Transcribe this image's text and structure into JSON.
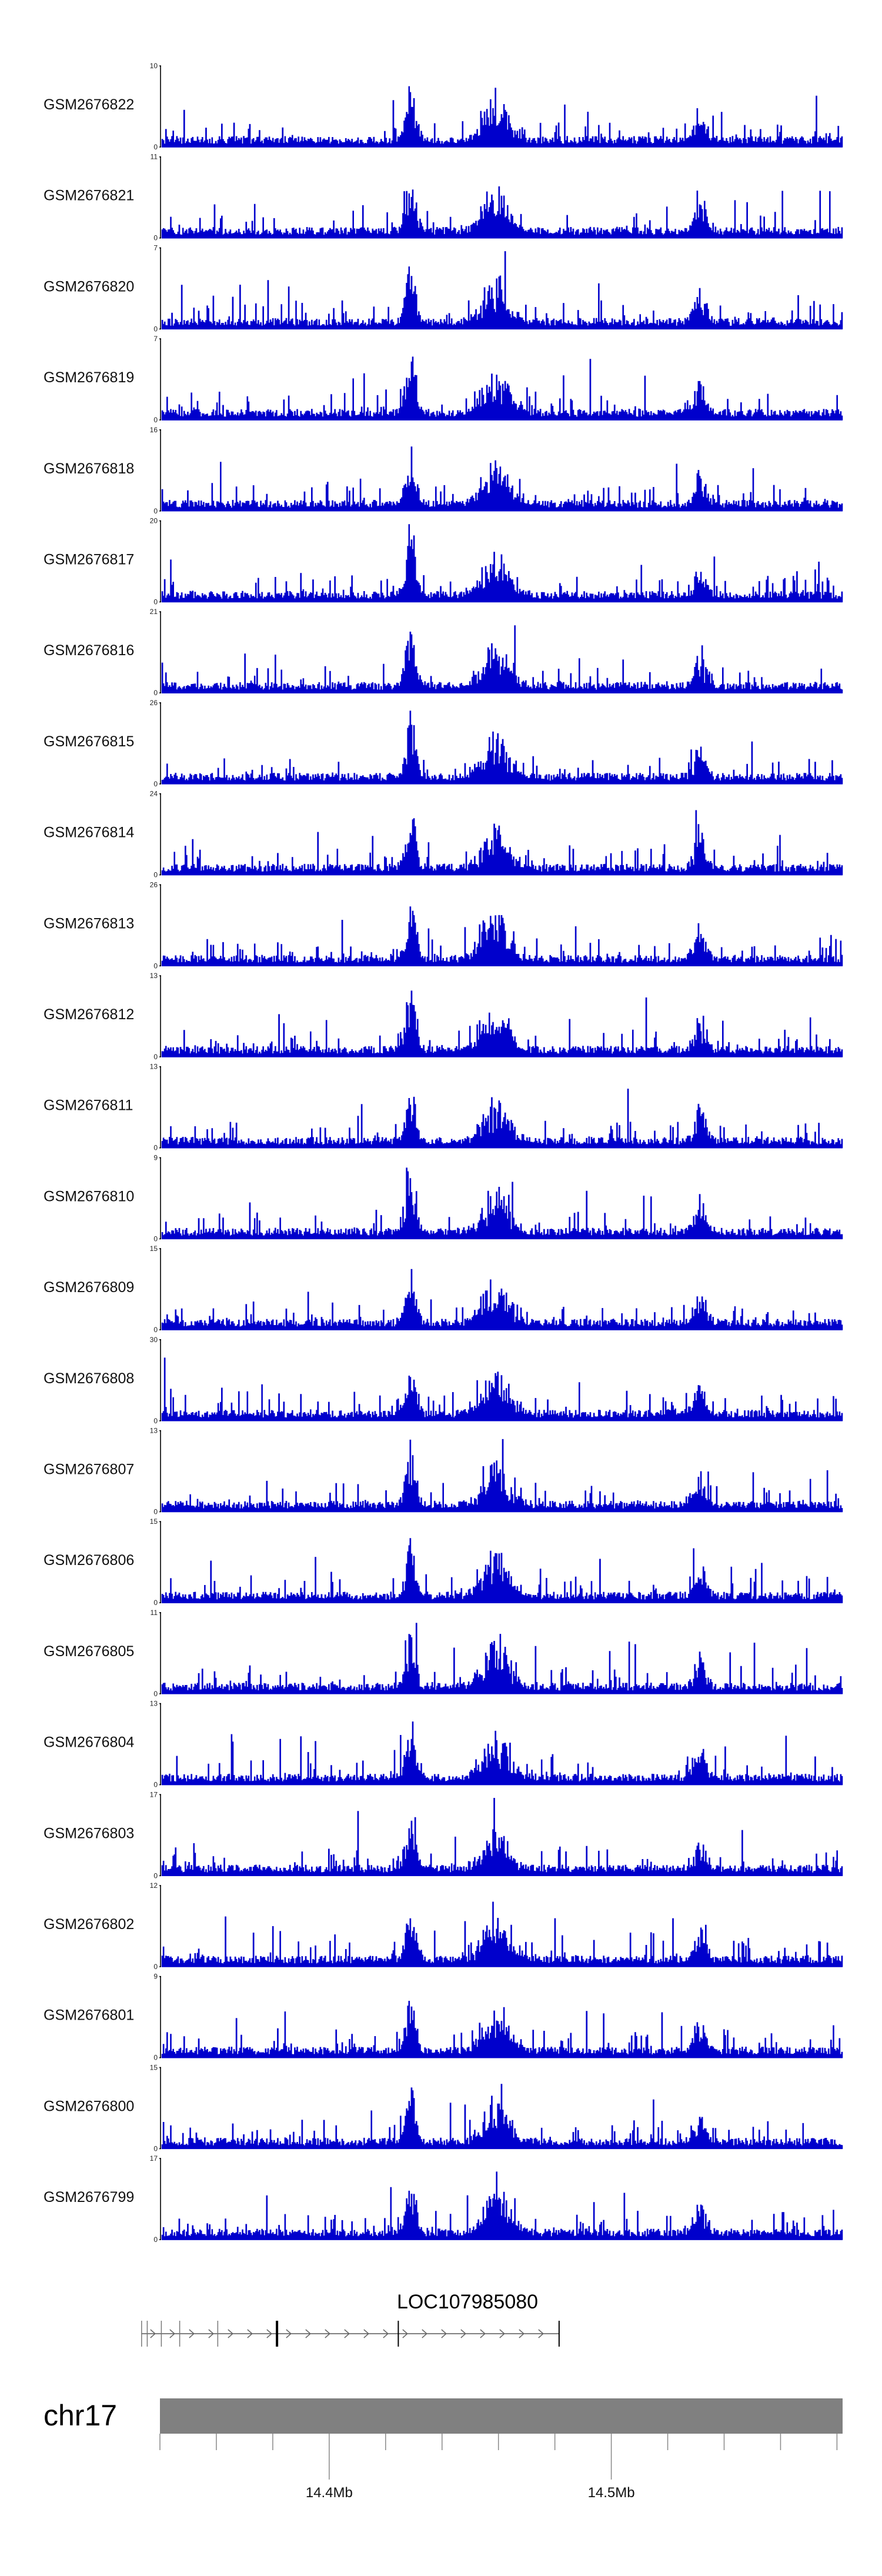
{
  "chart_data": {
    "type": "area",
    "series_color": "#0000cc",
    "tracks": [
      {
        "name": "GSM2676822",
        "ymax": 10,
        "ymin": 0
      },
      {
        "name": "GSM2676821",
        "ymax": 11,
        "ymin": 0
      },
      {
        "name": "GSM2676820",
        "ymax": 7,
        "ymin": 0
      },
      {
        "name": "GSM2676819",
        "ymax": 7,
        "ymin": 0
      },
      {
        "name": "GSM2676818",
        "ymax": 16,
        "ymin": 0
      },
      {
        "name": "GSM2676817",
        "ymax": 20,
        "ymin": 0
      },
      {
        "name": "GSM2676816",
        "ymax": 21,
        "ymin": 0
      },
      {
        "name": "GSM2676815",
        "ymax": 26,
        "ymin": 0
      },
      {
        "name": "GSM2676814",
        "ymax": 24,
        "ymin": 0
      },
      {
        "name": "GSM2676813",
        "ymax": 26,
        "ymin": 0
      },
      {
        "name": "GSM2676812",
        "ymax": 13,
        "ymin": 0
      },
      {
        "name": "GSM2676811",
        "ymax": 13,
        "ymin": 0
      },
      {
        "name": "GSM2676810",
        "ymax": 9,
        "ymin": 0
      },
      {
        "name": "GSM2676809",
        "ymax": 15,
        "ymin": 0
      },
      {
        "name": "GSM2676808",
        "ymax": 30,
        "ymin": 0
      },
      {
        "name": "GSM2676807",
        "ymax": 13,
        "ymin": 0
      },
      {
        "name": "GSM2676806",
        "ymax": 15,
        "ymin": 0
      },
      {
        "name": "GSM2676805",
        "ymax": 11,
        "ymin": 0
      },
      {
        "name": "GSM2676804",
        "ymax": 13,
        "ymin": 0
      },
      {
        "name": "GSM2676803",
        "ymax": 17,
        "ymin": 0
      },
      {
        "name": "GSM2676802",
        "ymax": 12,
        "ymin": 0
      },
      {
        "name": "GSM2676801",
        "ymax": 9,
        "ymin": 0
      },
      {
        "name": "GSM2676800",
        "ymax": 15,
        "ymin": 0
      },
      {
        "name": "GSM2676799",
        "ymax": 17,
        "ymin": 0
      }
    ],
    "gene": {
      "name": "LOC107985080",
      "strand": "+",
      "start_mb": 14.3335,
      "end_mb": 14.4815,
      "exons_mb": [
        14.3335,
        14.3355,
        14.3405,
        14.347,
        14.3605,
        14.3815,
        14.4245,
        14.4815
      ]
    },
    "chromosome": {
      "name": "chr17",
      "color": "#808080",
      "xlim_mb": [
        14.34,
        14.582
      ],
      "ticks": [
        {
          "mb": 14.4,
          "label": "14.4Mb"
        },
        {
          "mb": 14.5,
          "label": "14.5Mb"
        }
      ],
      "minor_tick_step_mb": 0.02
    }
  }
}
